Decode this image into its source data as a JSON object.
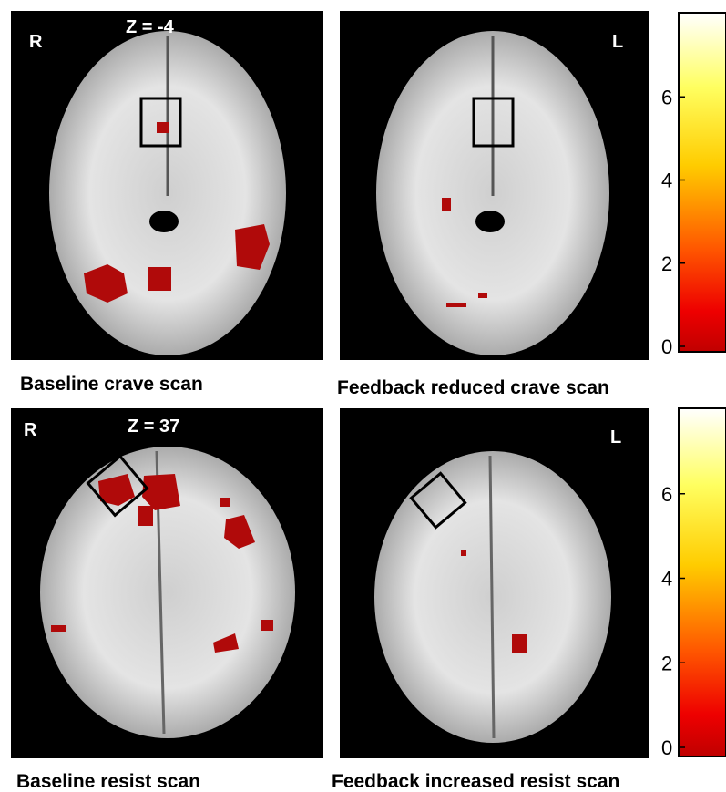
{
  "panels": [
    {
      "side_label": "R",
      "slice_label": "Z = -4",
      "caption": "Baseline crave scan"
    },
    {
      "side_label": "L",
      "caption": "Feedback reduced crave scan"
    },
    {
      "side_label": "R",
      "slice_label": "Z = 37",
      "caption": "Baseline resist scan"
    },
    {
      "side_label": "L",
      "caption": "Feedback increased resist scan"
    }
  ],
  "colorbars": [
    {
      "range": [
        0,
        8
      ],
      "ticks": [
        0,
        2,
        4,
        6
      ]
    },
    {
      "range": [
        0,
        8
      ],
      "ticks": [
        0,
        2,
        4,
        6
      ]
    }
  ]
}
